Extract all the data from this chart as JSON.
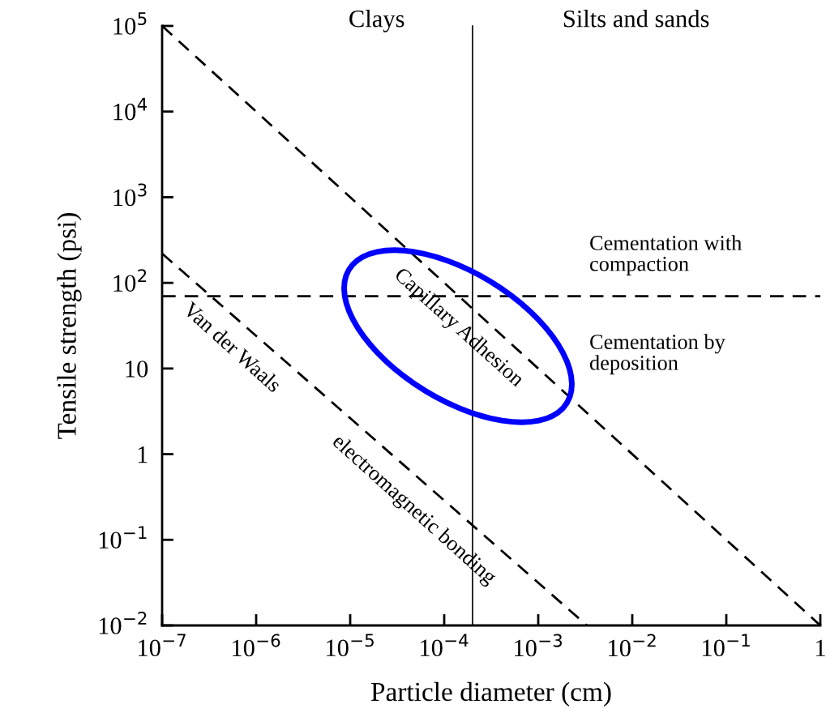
{
  "chart_data": {
    "type": "line",
    "xlabel": "Particle diameter (cm)",
    "ylabel": "Tensile strength (psi)",
    "log": "xy",
    "grid": false,
    "line_style": "dashed",
    "marker": "none",
    "xlim": [
      1e-07,
      1
    ],
    "ylim": [
      0.01,
      100000
    ],
    "xticks": [
      {
        "value": 1e-07,
        "label": "10$^{−7}$"
      },
      {
        "value": 1e-06,
        "label": "10$^{−6}$"
      },
      {
        "value": 1e-05,
        "label": "10$^{−5}$"
      },
      {
        "value": 0.0001,
        "label": "10$^{−4}$"
      },
      {
        "value": 0.001,
        "label": "10$^{−3}$"
      },
      {
        "value": 0.01,
        "label": "10$^{−2}$"
      },
      {
        "value": 0.1,
        "label": "10$^{−1}$"
      },
      1
    ],
    "yticks": [
      {
        "value": 0.01,
        "label": "10$^{−2}$"
      },
      {
        "value": 0.1,
        "label": "10$^{−1}$"
      },
      1,
      10,
      {
        "value": 100,
        "label": "10$^{2}$"
      },
      {
        "value": 1000,
        "label": "10$^{3}$"
      },
      {
        "value": 10000,
        "label": "10$^{4}$"
      },
      {
        "value": 100000,
        "label": "10$^{5}$"
      }
    ],
    "series": [
      {
        "color": "#000000",
        "x": [
          1e-07,
          1
        ],
        "values": [
          100000,
          0.01
        ]
      },
      {
        "color": "#000000",
        "x": [
          1e-07,
          0.0033
        ],
        "values": [
          220,
          0.01
        ]
      }
    ],
    "ref_lines": [
      {
        "axis": "y",
        "value": 70,
        "color": "#000000",
        "line_style": "dashed"
      },
      {
        "axis": "x",
        "value": 0.0002,
        "color": "#000000",
        "line_style": "solid"
      }
    ],
    "annotations": [
      "Clays",
      "Silts and sands",
      "Cementation with\ncompaction",
      "Cementation by\ndeposition",
      "Capillary Adhesion",
      "Van der Waals",
      "electromagnetic bonding"
    ]
  }
}
